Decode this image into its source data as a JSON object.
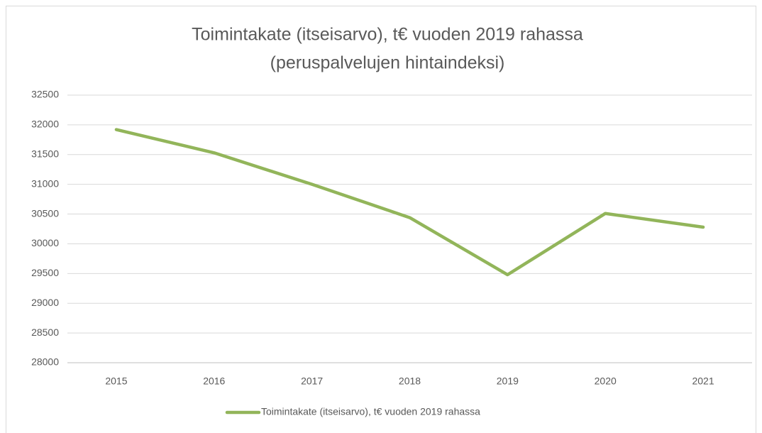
{
  "chart_data": {
    "type": "line",
    "title": [
      "Toimintakate (itseisarvo), t€ vuoden 2019 rahassa",
      "(peruspalvelujen hintaindeksi)"
    ],
    "categories": [
      "2015",
      "2016",
      "2017",
      "2018",
      "2019",
      "2020",
      "2021"
    ],
    "series": [
      {
        "name": "Toimintakate (itseisarvo), t€ vuoden 2019 rahassa",
        "color": "#92b55a",
        "values": [
          31920,
          31530,
          31000,
          30440,
          29480,
          30510,
          30280
        ]
      }
    ],
    "ylim": [
      28000,
      32500
    ],
    "yticks": [
      28000,
      28500,
      29000,
      29500,
      30000,
      30500,
      31000,
      31500,
      32000,
      32500
    ],
    "grid": true,
    "legend": "bottom"
  }
}
